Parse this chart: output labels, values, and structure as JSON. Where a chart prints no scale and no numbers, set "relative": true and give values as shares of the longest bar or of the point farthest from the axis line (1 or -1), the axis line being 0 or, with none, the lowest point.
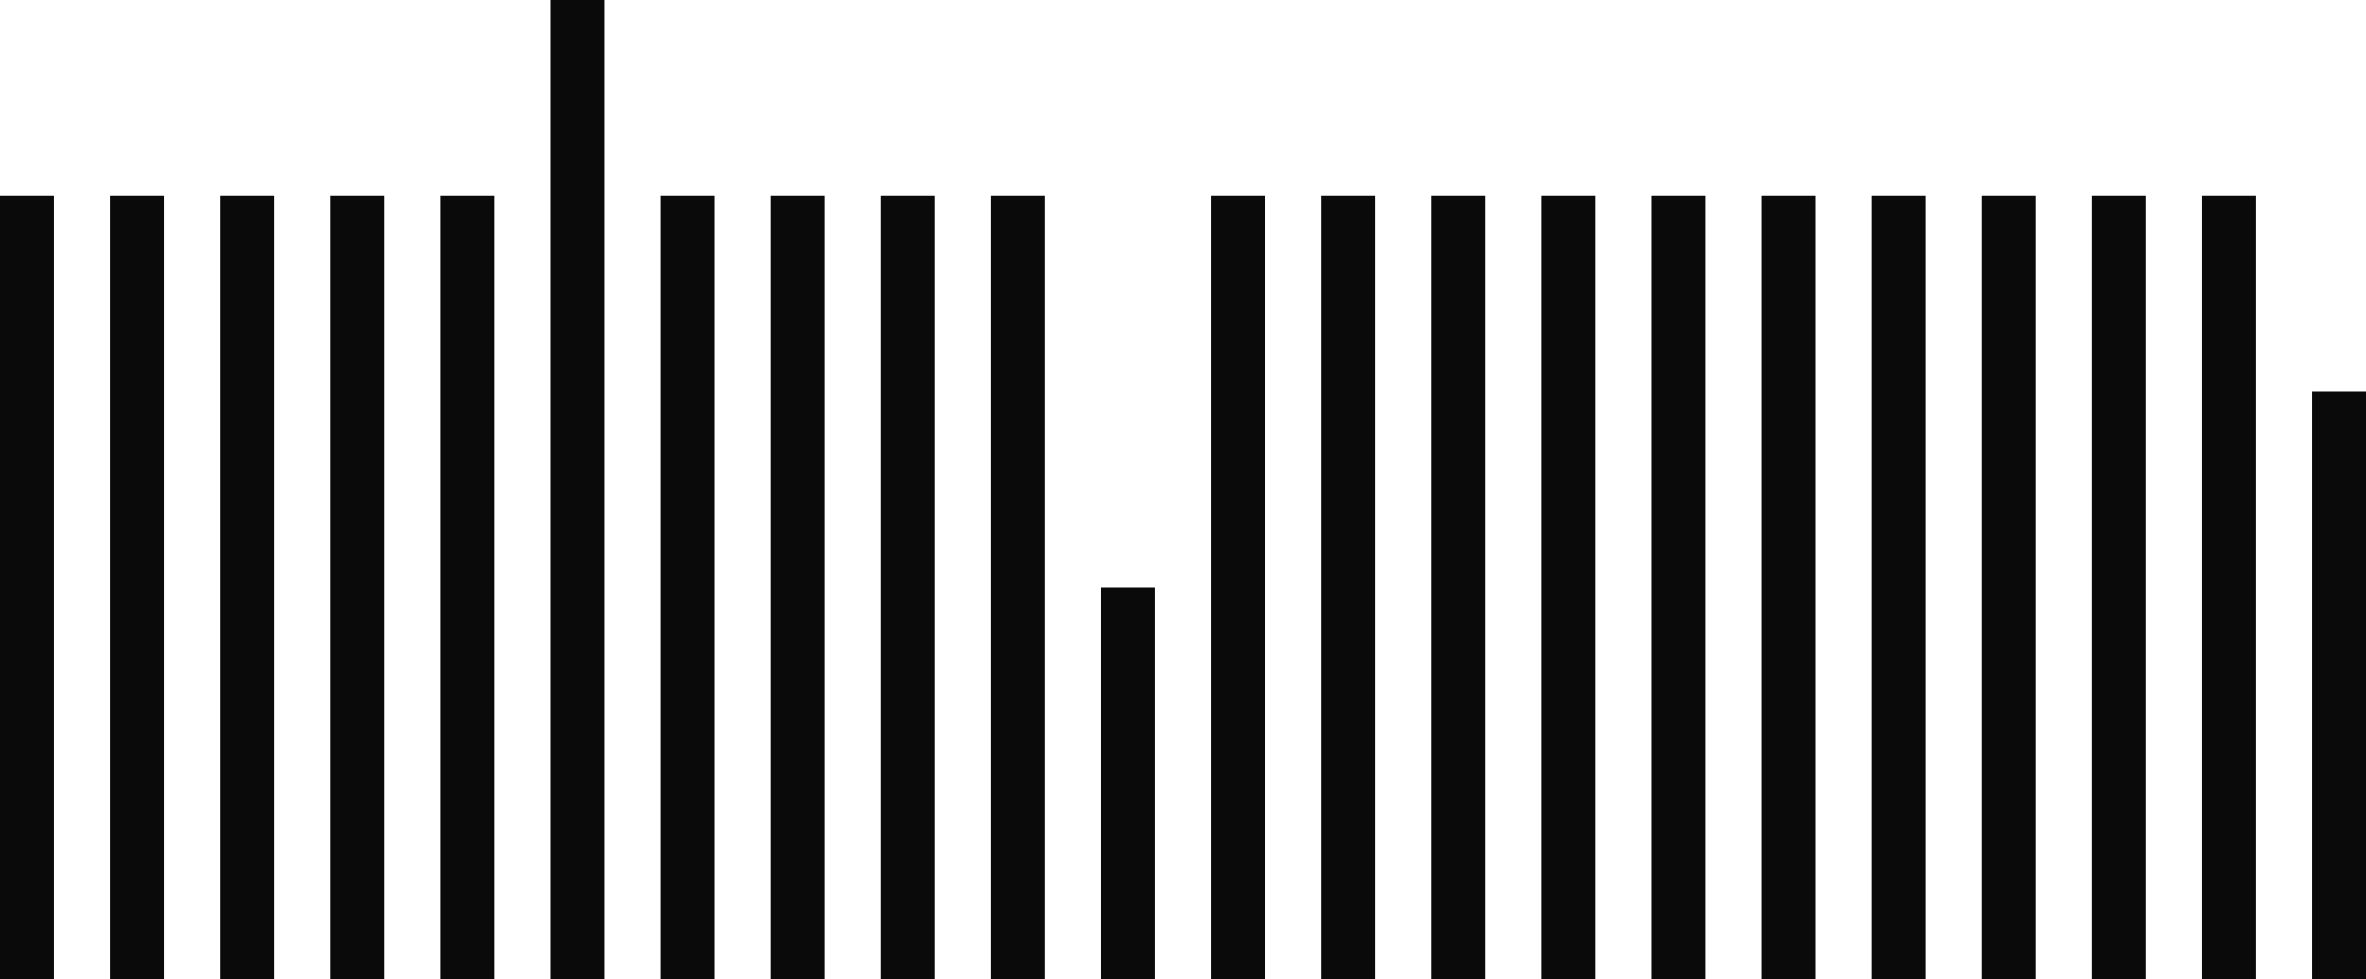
{
  "chart_data": {
    "type": "bar",
    "relative": true,
    "categories": [
      null,
      null,
      null,
      null,
      null,
      null,
      null,
      null,
      null,
      null,
      null,
      null,
      null,
      null,
      null,
      null,
      null,
      null,
      null,
      null,
      null,
      null
    ],
    "values": [
      0.8,
      0.8,
      0.8,
      0.8,
      0.8,
      1,
      0.8,
      0.8,
      0.8,
      0.8,
      0.4,
      0.8,
      0.8,
      0.8,
      0.8,
      0.8,
      0.8,
      0.8,
      0.8,
      0.8,
      0.8,
      0.6
    ],
    "color": "#0a0a0a"
  }
}
